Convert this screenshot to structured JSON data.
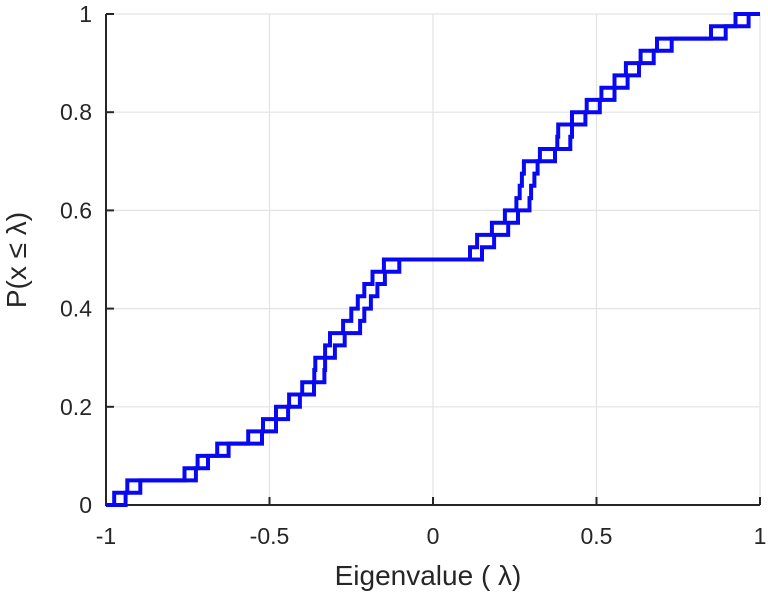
{
  "figure": {
    "background": "#ffffff"
  },
  "chart_data": {
    "type": "line",
    "variant": "empirical-cdf-step-plot",
    "title": "",
    "xlabel": "Eigenvalue (  λ)",
    "ylabel": "P(x ≤ λ)",
    "xlim": [
      -1,
      1
    ],
    "ylim": [
      0,
      1
    ],
    "xticks": [
      -1,
      -0.5,
      0,
      0.5,
      1
    ],
    "xtick_labels": [
      "-1",
      "-0.5",
      "0",
      "0.5",
      "1"
    ],
    "yticks": [
      0,
      0.2,
      0.4,
      0.6,
      0.8,
      1
    ],
    "ytick_labels": [
      "0",
      "0.2",
      "0.4",
      "0.6",
      "0.8",
      "1"
    ],
    "grid": true,
    "legend": "none",
    "colors": {
      "line": "#0909f1",
      "axis": "#262626",
      "tick_label": "#262626",
      "grid": "#e3e3e3",
      "background": "#ffffff"
    },
    "n_steps_per_series": 40,
    "step_y_increment": 0.025,
    "series": [
      {
        "name": "ecdf-curve-1",
        "color": "#0909f1",
        "step_x": [
          -0.975,
          -0.935,
          -0.76,
          -0.72,
          -0.66,
          -0.565,
          -0.52,
          -0.48,
          -0.44,
          -0.4,
          -0.363,
          -0.36,
          -0.33,
          -0.315,
          -0.275,
          -0.25,
          -0.23,
          -0.21,
          -0.185,
          -0.15,
          0.113,
          0.135,
          0.18,
          0.22,
          0.255,
          0.265,
          0.272,
          0.278,
          0.327,
          0.38,
          0.383,
          0.425,
          0.47,
          0.515,
          0.555,
          0.59,
          0.635,
          0.685,
          0.85,
          0.925
        ]
      },
      {
        "name": "ecdf-curve-2",
        "color": "#0909f1",
        "step_x": [
          -0.94,
          -0.895,
          -0.725,
          -0.688,
          -0.625,
          -0.523,
          -0.48,
          -0.443,
          -0.407,
          -0.364,
          -0.332,
          -0.33,
          -0.3,
          -0.27,
          -0.223,
          -0.21,
          -0.19,
          -0.17,
          -0.147,
          -0.103,
          0.15,
          0.187,
          0.23,
          0.26,
          0.295,
          0.3,
          0.31,
          0.32,
          0.373,
          0.42,
          0.425,
          0.466,
          0.51,
          0.555,
          0.595,
          0.63,
          0.675,
          0.73,
          0.895,
          0.965
        ]
      }
    ]
  }
}
